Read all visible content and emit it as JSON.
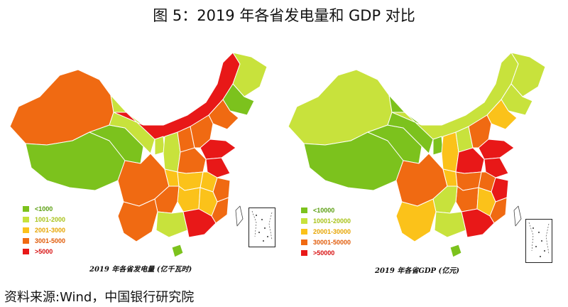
{
  "title": "图 5：2019 年各省发电量和 GDP 对比",
  "source": "资料来源:Wind，中国银行研究院",
  "colors": {
    "c1": "#7cc21d",
    "c2": "#c8e23c",
    "c3": "#fbc21a",
    "c4": "#f06a12",
    "c5": "#e81818"
  },
  "left_map": {
    "caption": "2019 年各省发电量 (亿千瓦时)",
    "legend": [
      "<1000",
      "1001-2000",
      "2001-3000",
      "3001-5000",
      ">5000"
    ]
  },
  "right_map": {
    "caption": "2019 年各省GDP (亿元)",
    "legend": [
      "<10000",
      "10001-20000",
      "20001-30000",
      "30001-50000",
      ">50000"
    ]
  }
}
